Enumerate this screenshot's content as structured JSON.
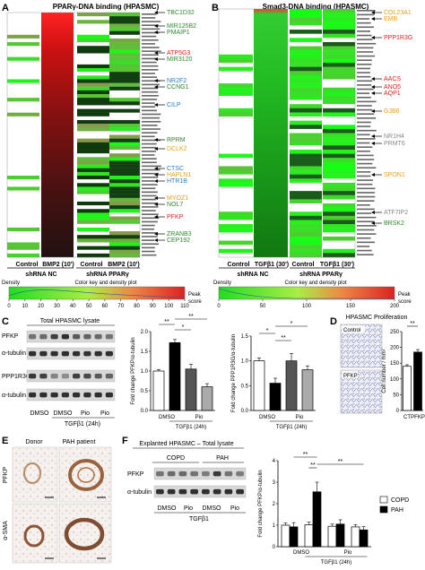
{
  "panels": {
    "A": {
      "letter": "A",
      "title": "PPARγ-DNA binding (HPASMC)",
      "col_labels": [
        "Control",
        "BMP2 (10')",
        "Control",
        "BMP2 (10')"
      ],
      "group_labels": [
        "shRNA NC",
        "shRNA PPARγ"
      ],
      "genes": [
        {
          "name": "TBC1D32",
          "color": "#2e8b2e"
        },
        {
          "name": "MIR125B2",
          "color": "#2e8b2e"
        },
        {
          "name": "PMAIP1",
          "color": "#2e8b2e"
        },
        {
          "name": "ATP5G3",
          "color": "#e02020"
        },
        {
          "name": "MIR3120",
          "color": "#2e8b2e"
        },
        {
          "name": "NR2F2",
          "color": "#2d7fc1"
        },
        {
          "name": "CCNG1",
          "color": "#2e8b2e"
        },
        {
          "name": "CILP",
          "color": "#2d7fc1"
        },
        {
          "name": "RPRM",
          "color": "#2e8b2e"
        },
        {
          "name": "DCLK2",
          "color": "#e8a020"
        },
        {
          "name": "CTSC",
          "color": "#2d7fc1"
        },
        {
          "name": "HAPLN1",
          "color": "#e8a020"
        },
        {
          "name": "HTR1B",
          "color": "#2d7fc1"
        },
        {
          "name": "MYOZ1",
          "color": "#e8a020"
        },
        {
          "name": "NOL7",
          "color": "#2e8b2e"
        },
        {
          "name": "PFKP",
          "color": "#e02020"
        },
        {
          "name": "ZRANB3",
          "color": "#2e8b2e"
        },
        {
          "name": "CEP192",
          "color": "#2e8b2e"
        }
      ],
      "key_title": "Color key and density plot",
      "key_density": "Density",
      "key_peak": "Peak",
      "key_score": "score",
      "key_ticks": [
        "0",
        "10",
        "20",
        "30",
        "40",
        "50",
        "60",
        "70",
        "80",
        "90",
        "100",
        "110"
      ]
    },
    "B": {
      "letter": "B",
      "title": "Smad3-DNA binding (HPASMC)",
      "col_labels": [
        "Control",
        "TGFβ1 (30')",
        "Control",
        "TGFβ1 (30')"
      ],
      "group_labels": [
        "shRNA NC",
        "shRNA PPARγ"
      ],
      "genes": [
        {
          "name": "COL23A1",
          "color": "#e8a020"
        },
        {
          "name": "EMB",
          "color": "#e8a020"
        },
        {
          "name": "PPP1R3G",
          "color": "#e02020"
        },
        {
          "name": "AACS",
          "color": "#e02020"
        },
        {
          "name": "ANO5",
          "color": "#e02020"
        },
        {
          "name": "AQP1",
          "color": "#e02020"
        },
        {
          "name": "GJB6",
          "color": "#e8a020"
        },
        {
          "name": "NR1H4",
          "color": "#888888"
        },
        {
          "name": "PRMT6",
          "color": "#888888"
        },
        {
          "name": "SPON1",
          "color": "#e8a020"
        },
        {
          "name": "ATF7IP2",
          "color": "#888888"
        },
        {
          "name": "BRSK2",
          "color": "#2e8b2e"
        }
      ],
      "key_title": "Color key and density plot",
      "key_density": "Density",
      "key_peak": "Peak",
      "key_score": "score",
      "key_ticks": [
        "0",
        "50",
        "100",
        "150",
        "200"
      ]
    },
    "C": {
      "letter": "C",
      "blot_title": "Total HPASMC lysate",
      "blot_rows": [
        "PFKP",
        "α-tubulin",
        "PPP1R3G",
        "α-tubulin"
      ],
      "lane_labels": [
        "DMSO",
        "DMSO",
        "Pio",
        "Pio"
      ],
      "treatment": "TGFβ1 (24h)",
      "chart_data": [
        {
          "type": "bar",
          "categories": [
            "DMSO",
            "DMSO + TGFβ1",
            "Pio",
            "Pio + TGFβ1"
          ],
          "values": [
            1.0,
            1.72,
            1.05,
            0.6
          ],
          "errors": [
            0.04,
            0.08,
            0.12,
            0.08
          ],
          "ylabel": "Fold change PFKP/α-tubulin",
          "ylim": [
            0,
            2.0
          ],
          "yticks": [
            "0.0",
            "0.5",
            "1.0",
            "1.5",
            "2.0"
          ],
          "colors": [
            "#ffffff",
            "#000000",
            "#555555",
            "#aaaaaa"
          ],
          "significance": [
            "**",
            "**",
            "*"
          ],
          "xlabels": [
            "DMSO",
            "Pio"
          ],
          "xgroup": "TGFβ1 (24h)"
        },
        {
          "type": "bar",
          "categories": [
            "DMSO",
            "DMSO + TGFβ1",
            "Pio",
            "Pio + TGFβ1"
          ],
          "values": [
            1.0,
            0.55,
            1.0,
            0.82
          ],
          "errors": [
            0.06,
            0.1,
            0.15,
            0.08
          ],
          "ylabel": "Fold change PPP1R3G/α-tubulin",
          "ylim": [
            0,
            1.5
          ],
          "yticks": [
            "0.0",
            "0.5",
            "1.0",
            "1.5"
          ],
          "colors": [
            "#ffffff",
            "#000000",
            "#555555",
            "#aaaaaa"
          ],
          "significance": [
            "*",
            "**",
            "*"
          ],
          "xlabels": [
            "DMSO",
            "Pio"
          ],
          "xgroup": "TGFβ1 (24h)"
        }
      ]
    },
    "D": {
      "letter": "D",
      "title": "HPASMC Proliferation",
      "image_labels": [
        "Control",
        "PFKP"
      ],
      "chart_data": {
        "type": "bar",
        "categories": [
          "CT",
          "PFKP"
        ],
        "values": [
          140,
          185
        ],
        "errors": [
          5,
          8
        ],
        "ylabel": "Cell number / mm²",
        "ylim": [
          0,
          250
        ],
        "yticks": [
          "0",
          "50",
          "100",
          "150",
          "200",
          "250"
        ],
        "significance": [
          "**"
        ],
        "colors": [
          "#ffffff",
          "#000000"
        ]
      }
    },
    "E": {
      "letter": "E",
      "col_labels": [
        "Donor",
        "PAH patient"
      ],
      "row_labels": [
        "PFKP",
        "α-SMA"
      ]
    },
    "F": {
      "letter": "F",
      "blot_title": "Explanted HPASMC – Total lysate",
      "group_labels": [
        "COPD",
        "PAH"
      ],
      "blot_rows": [
        "PFKP",
        "α-tubulin"
      ],
      "lane_labels": [
        "DMSO",
        "Pio",
        "DMSO",
        "Pio"
      ],
      "treatment": "TGFβ1",
      "chart_data": {
        "type": "bar",
        "categories": [
          "DMSO",
          "DMSO + TGFβ1",
          "Pio",
          "Pio + TGFβ1"
        ],
        "series": [
          {
            "name": "COPD",
            "values": [
              1.0,
              1.02,
              0.95,
              0.92
            ],
            "errors": [
              0.1,
              0.12,
              0.1,
              0.1
            ],
            "color": "#ffffff"
          },
          {
            "name": "PAH",
            "values": [
              0.92,
              2.55,
              1.05,
              0.78
            ],
            "errors": [
              0.2,
              0.45,
              0.2,
              0.15
            ],
            "color": "#000000"
          }
        ],
        "ylabel": "Fold change PFKP/α-tubulin",
        "ylim": [
          0,
          4
        ],
        "yticks": [
          "0",
          "1",
          "2",
          "3",
          "4"
        ],
        "significance": [
          "**",
          "**",
          "**"
        ],
        "xlabels": [
          "DMSO",
          "Pio"
        ],
        "xgroup": "TGFβ1 (24h)",
        "legend": "right"
      }
    }
  }
}
